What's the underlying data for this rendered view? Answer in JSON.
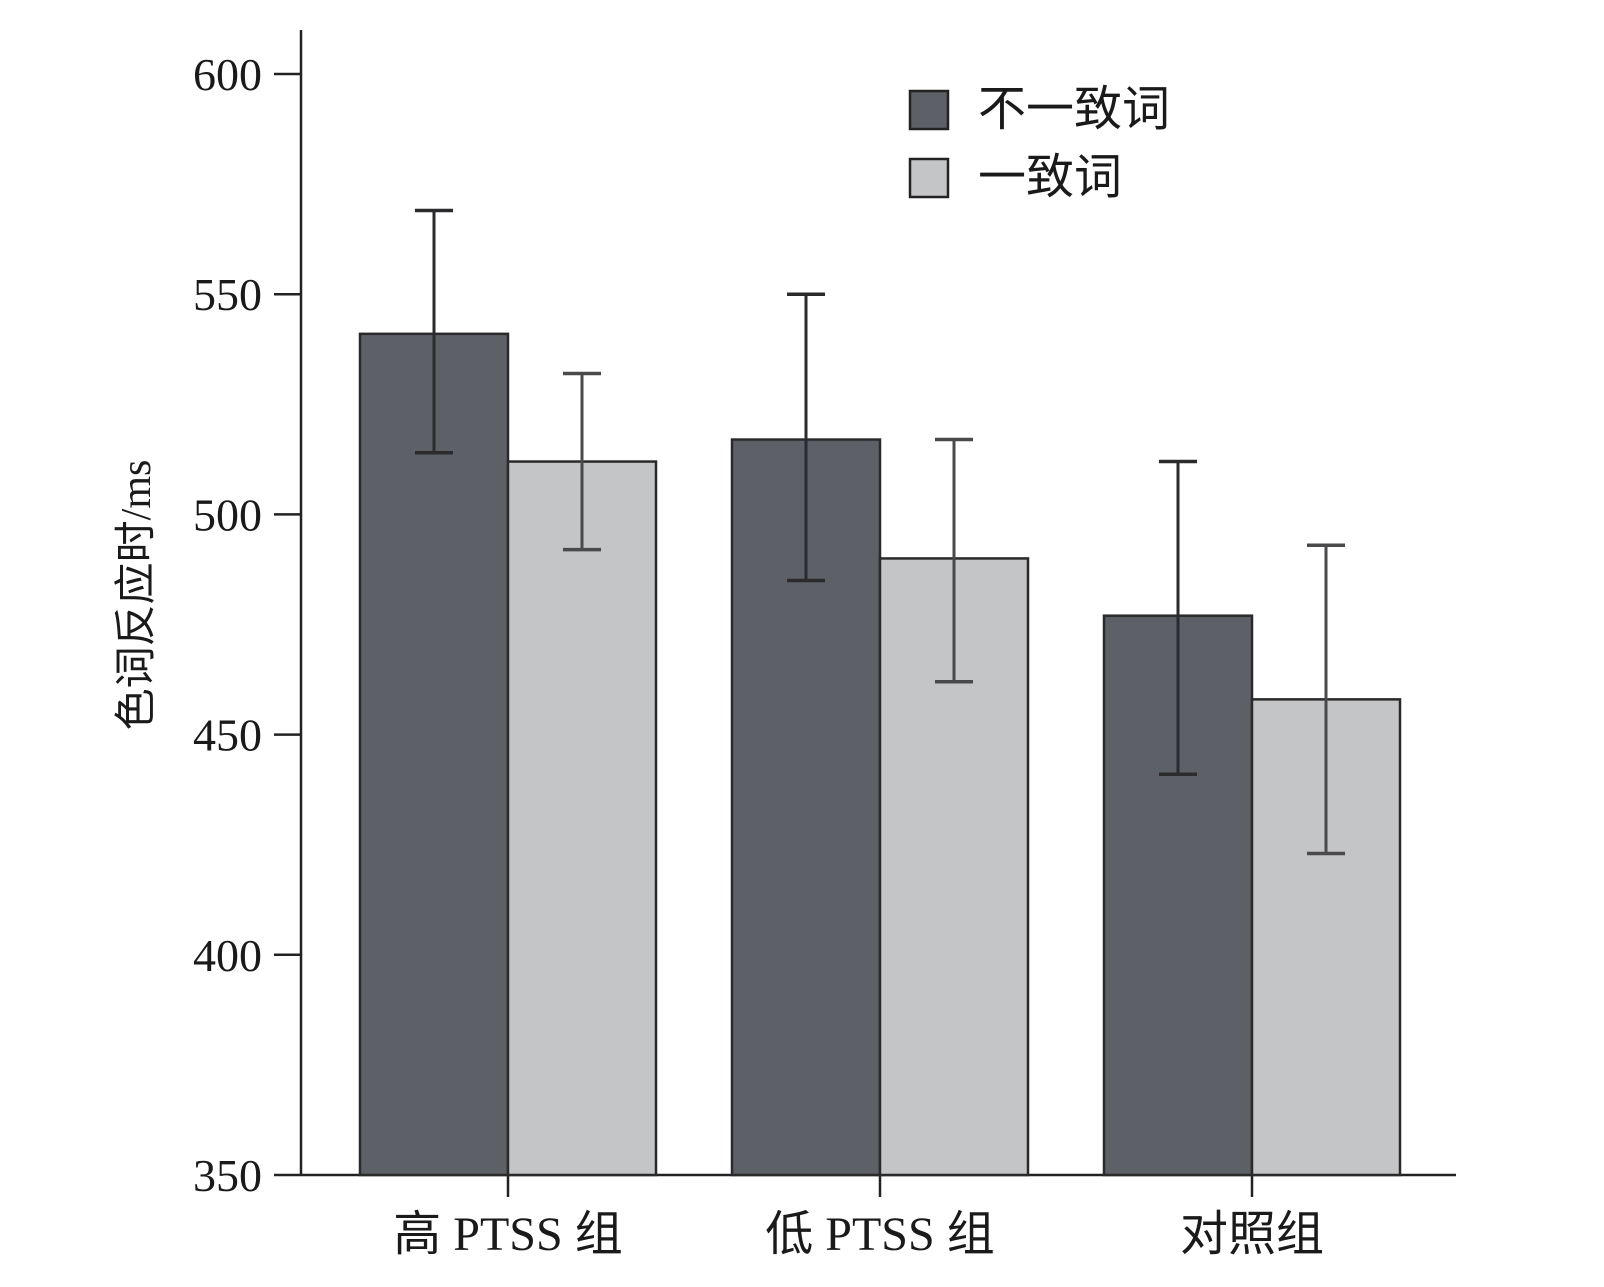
{
  "chart_data": {
    "type": "bar",
    "title": "",
    "xlabel": "",
    "ylabel": "色词反应时/ms",
    "ylim": [
      350,
      610
    ],
    "yticks": [
      350,
      400,
      450,
      500,
      550,
      600
    ],
    "grid": false,
    "legend_position": "top-right",
    "categories": [
      "高 PTSS 组",
      "低 PTSS 组",
      "对照组"
    ],
    "series": [
      {
        "name": "不一致词",
        "color": "#5e6068",
        "values": [
          541,
          517,
          477
        ],
        "error_low": [
          514,
          485,
          441
        ],
        "error_high": [
          569,
          550,
          512
        ]
      },
      {
        "name": "一致词",
        "color": "#c4c5c7",
        "values": [
          512,
          490,
          458
        ],
        "error_low": [
          492,
          462,
          423
        ],
        "error_high": [
          532,
          517,
          493
        ]
      }
    ]
  }
}
